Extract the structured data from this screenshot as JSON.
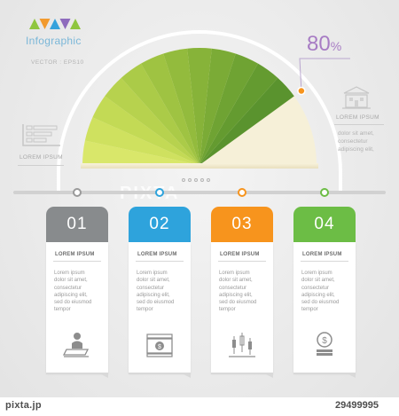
{
  "header": {
    "title": "Infographic",
    "subtitle": "VECTOR : EPS10",
    "triangle_colors": [
      "#8fc63f",
      "#f29a2e",
      "#35a2dc",
      "#8e6bbd",
      "#8fc63f"
    ]
  },
  "gauge": {
    "percent_number": "80",
    "percent_sign": "%",
    "percent_value": 80,
    "accent_color": "#a77cc4",
    "marker_color": "#f7941d"
  },
  "left_panel": {
    "label": "LOREM IPSUM",
    "icon": "bar-list-icon"
  },
  "right_panel": {
    "label": "LOREM IPSUM",
    "icon": "building-icon",
    "text_lines": [
      "dolor sit amet,",
      "consectetur",
      "adipiscing elit,"
    ]
  },
  "timeline": {
    "dot_colors": [
      "#9a9a9a",
      "#2ea3dc",
      "#f7941d",
      "#6cbd45"
    ]
  },
  "watermark": "PIXTA",
  "cards": [
    {
      "number": "01",
      "color": "#888b8d",
      "title": "LOREM IPSUM",
      "lines": [
        "Lorem ipsum",
        "dolor sit amet,",
        "consectetur",
        "adipiscing elit,",
        "sed do eiusmod",
        "tempor"
      ],
      "icon": "person-desk-icon"
    },
    {
      "number": "02",
      "color": "#2ea3dc",
      "title": "LOREM IPSUM",
      "lines": [
        "Lorem ipsum",
        "dolor sit amet,",
        "consectetur",
        "adipiscing elit,",
        "sed do eiusmod",
        "tempor"
      ],
      "icon": "money-bills-icon"
    },
    {
      "number": "03",
      "color": "#f7941d",
      "title": "LOREM IPSUM",
      "lines": [
        "Lorem ipsum",
        "dolor sit amet,",
        "consectetur",
        "adipiscing elit,",
        "sed do eiusmod",
        "tempor"
      ],
      "icon": "candlestick-chart-icon"
    },
    {
      "number": "04",
      "color": "#6cbd45",
      "title": "LOREM IPSUM",
      "lines": [
        "Lorem ipsum",
        "dolor sit amet,",
        "consectetur",
        "adipiscing elit,",
        "sed do eiusmod",
        "tempor"
      ],
      "icon": "dollar-coin-icon"
    }
  ],
  "footer": {
    "brand": "pixta.jp",
    "image_number": "29499995"
  }
}
